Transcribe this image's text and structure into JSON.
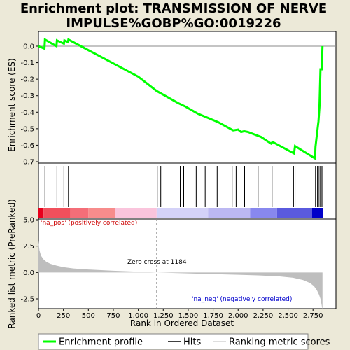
{
  "chart_data": {
    "type": "line",
    "title": "Enrichment plot: TRANSMISSION OF NERVE IMPULSE%GOBP%GO:0019226",
    "title_lines": [
      "Enrichment plot: TRANSMISSION OF NERVE",
      "IMPULSE%GOBP%GO:0019226"
    ],
    "top_panel": {
      "ylabel": "Enrichment score (ES)",
      "ylim": [
        -0.7,
        0.05
      ],
      "yticks": [
        "0.0",
        "-0.1",
        "-0.2",
        "-0.3",
        "-0.4",
        "-0.5",
        "-0.6",
        "-0.7"
      ],
      "ytick_values": [
        0.0,
        -0.1,
        -0.2,
        -0.3,
        -0.4,
        -0.5,
        -0.6,
        -0.7
      ],
      "grid": false,
      "series": [
        {
          "name": "Enrichment profile",
          "color": "#00FF00",
          "x": [
            0,
            60,
            65,
            180,
            185,
            255,
            260,
            295,
            300,
            1000,
            1185,
            1400,
            1470,
            1600,
            1700,
            1800,
            1950,
            2000,
            2030,
            2060,
            2100,
            2230,
            2330,
            2345,
            2560,
            2570,
            2770,
            2775,
            2790,
            2805,
            2815,
            2825,
            2838,
            2845
          ],
          "y": [
            0.0,
            -0.015,
            0.04,
            0.0,
            0.035,
            0.015,
            0.035,
            0.025,
            0.04,
            -0.185,
            -0.272,
            -0.345,
            -0.365,
            -0.41,
            -0.435,
            -0.46,
            -0.51,
            -0.505,
            -0.52,
            -0.515,
            -0.52,
            -0.55,
            -0.59,
            -0.58,
            -0.65,
            -0.605,
            -0.68,
            -0.61,
            -0.53,
            -0.455,
            -0.365,
            -0.14,
            -0.14,
            0.0
          ]
        }
      ]
    },
    "hits_panel": {
      "hit_positions": [
        65,
        185,
        255,
        300,
        1190,
        1225,
        1420,
        1455,
        1580,
        1670,
        1790,
        1940,
        1980,
        2030,
        2065,
        2200,
        2340,
        2555,
        2570,
        2775,
        2795,
        2805,
        2820,
        2830,
        2840
      ]
    },
    "colorbar": {
      "segments": [
        {
          "x0": 0,
          "x1": 50,
          "color": "#E8001C"
        },
        {
          "x0": 50,
          "x1": 320,
          "color": "#F0505C"
        },
        {
          "x0": 320,
          "x1": 500,
          "color": "#F46E78"
        },
        {
          "x0": 500,
          "x1": 770,
          "color": "#F78C8C"
        },
        {
          "x0": 770,
          "x1": 1184,
          "color": "#FAC4DC"
        },
        {
          "x0": 1184,
          "x1": 1700,
          "color": "#D4D2F8"
        },
        {
          "x0": 1700,
          "x1": 2120,
          "color": "#BCB8F2"
        },
        {
          "x0": 2120,
          "x1": 2390,
          "color": "#8888EE"
        },
        {
          "x0": 2390,
          "x1": 2740,
          "color": "#5A5ADE"
        },
        {
          "x0": 2740,
          "x1": 2850,
          "color": "#0000C8"
        }
      ]
    },
    "bottom_panel": {
      "ylabel": "Ranked list metric (PreRanked)",
      "xlabel": "Rank in Ordered Dataset",
      "ylim": [
        -4.0,
        5.0
      ],
      "yticks": [
        "5.0",
        "2.5",
        "0.0",
        "-2.5"
      ],
      "ytick_values": [
        5.0,
        2.5,
        0.0,
        -2.5
      ],
      "xlim": [
        0,
        2980
      ],
      "xticks": [
        "0",
        "250",
        "500",
        "750",
        "1,000",
        "1,250",
        "1,500",
        "1,750",
        "2,000",
        "2,250",
        "2,500",
        "2,750"
      ],
      "xtick_values": [
        0,
        250,
        500,
        750,
        1000,
        1250,
        1500,
        1750,
        2000,
        2250,
        2500,
        2750
      ],
      "metric_x": [
        0,
        10,
        25,
        50,
        80,
        120,
        180,
        250,
        350,
        500,
        750,
        1000,
        1184,
        1400,
        1700,
        2000,
        2200,
        2400,
        2550,
        2650,
        2720,
        2760,
        2790,
        2810,
        2825,
        2835,
        2845
      ],
      "metric_y": [
        3.0,
        2.1,
        1.6,
        1.25,
        1.0,
        0.82,
        0.65,
        0.5,
        0.38,
        0.28,
        0.16,
        0.07,
        0.0,
        -0.06,
        -0.14,
        -0.22,
        -0.28,
        -0.36,
        -0.5,
        -0.72,
        -1.0,
        -1.3,
        -1.7,
        -2.1,
        -2.5,
        -3.0,
        -3.55
      ],
      "annotations": {
        "pos": "'na_pos' (positively correlated)",
        "neg": "'na_neg' (negatively correlated)",
        "zero_cross": "Zero cross at 1184"
      },
      "zero_cross": 1184
    },
    "legend": [
      {
        "label": "Enrichment profile",
        "color": "#00FF00"
      },
      {
        "label": "Hits",
        "color": "#000000"
      },
      {
        "label": "Ranking metric scores",
        "color": "#BEBEBE"
      }
    ]
  }
}
